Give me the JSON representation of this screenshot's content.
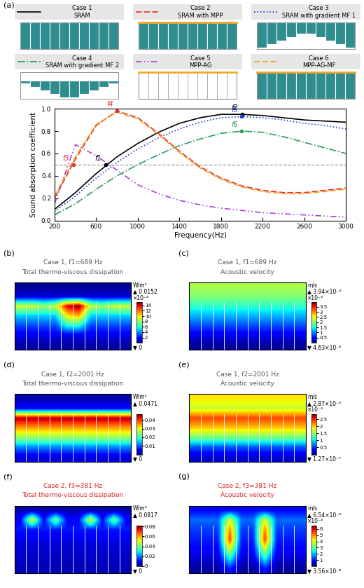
{
  "chart_data": [
    {
      "panel": "(a)",
      "type": "line",
      "xlabel": "Frequency(Hz)",
      "ylabel": "Sound absorption coefficient",
      "x": [
        200,
        400,
        600,
        800,
        1000,
        1200,
        1400,
        1600,
        1800,
        2000,
        2200,
        2400,
        2600,
        2800,
        3000
      ],
      "series": [
        {
          "name": "Case 1",
          "description": "SRAM",
          "color": "#000000",
          "line_style": "solid",
          "values": [
            0.1,
            0.25,
            0.42,
            0.57,
            0.69,
            0.79,
            0.87,
            0.92,
            0.95,
            0.95,
            0.94,
            0.92,
            0.9,
            0.89,
            0.88
          ]
        },
        {
          "name": "Case 2",
          "description": "SRAM with MPP",
          "color": "#e8302a",
          "line_style": "dashed",
          "values": [
            0.2,
            0.55,
            0.85,
            0.98,
            0.92,
            0.78,
            0.62,
            0.48,
            0.38,
            0.31,
            0.27,
            0.25,
            0.25,
            0.27,
            0.29
          ]
        },
        {
          "name": "Case 3",
          "description": "SRAM with gradient MF 1",
          "color": "#1f3fd0",
          "line_style": "dotted",
          "values": [
            0.08,
            0.22,
            0.38,
            0.52,
            0.64,
            0.74,
            0.82,
            0.88,
            0.92,
            0.93,
            0.92,
            0.9,
            0.87,
            0.85,
            0.82
          ]
        },
        {
          "name": "Case 4",
          "description": "SRAM with gradient MF 2",
          "color": "#2a9d5a",
          "line_style": "dashdot",
          "values": [
            0.05,
            0.15,
            0.28,
            0.4,
            0.5,
            0.59,
            0.67,
            0.73,
            0.78,
            0.8,
            0.79,
            0.75,
            0.7,
            0.65,
            0.6
          ]
        },
        {
          "name": "Case 5",
          "description": "MPP-AG",
          "color": "#b040d0",
          "line_style": "dashdotdot",
          "values": [
            0.15,
            0.68,
            0.58,
            0.45,
            0.32,
            0.24,
            0.18,
            0.14,
            0.11,
            0.09,
            0.07,
            0.06,
            0.05,
            0.04,
            0.03
          ]
        },
        {
          "name": "Case 6",
          "description": "MPP-AG-MF",
          "color": "#f0a020",
          "line_style": "dashed",
          "values": [
            0.22,
            0.57,
            0.86,
            0.97,
            0.91,
            0.77,
            0.61,
            0.47,
            0.37,
            0.3,
            0.26,
            0.24,
            0.24,
            0.26,
            0.28
          ]
        }
      ],
      "xlim": [
        200,
        3000
      ],
      "xticks": [
        200,
        600,
        1000,
        1400,
        1800,
        2200,
        2600,
        3000
      ],
      "ylim": [
        0.0,
        1.0
      ],
      "yticks": [
        0.0,
        0.2,
        0.4,
        0.6,
        0.8,
        1.0
      ],
      "reference_y": 0.5,
      "annotations": [
        {
          "text": "f1",
          "x": 689,
          "y": 0.5,
          "color": "#000000"
        },
        {
          "text": "f2",
          "x": 2001,
          "y": 0.95,
          "color": "#000000"
        },
        {
          "text": "f3",
          "x": 381,
          "y": 0.5,
          "color": "#e8302a"
        },
        {
          "text": "f4",
          "x": 800,
          "y": 0.98,
          "color": "#e8302a"
        },
        {
          "text": "f5",
          "x": 2000,
          "y": 0.93,
          "color": "#1f3fd0"
        },
        {
          "text": "f6",
          "x": 2000,
          "y": 0.8,
          "color": "#2a9d5a"
        }
      ]
    },
    {
      "panel": "(b)",
      "type": "heatmap",
      "title": "Case 1, f1=689 Hz",
      "subtitle": "Total thermo-viscous dissipation",
      "unit": "W/m³",
      "max_label": "▲ 0.0152",
      "min_label": "▼ 0",
      "multiplier": "×10⁻³",
      "clim": [
        0,
        15.2
      ],
      "cticks": [
        2,
        4,
        6,
        8,
        10,
        12,
        14
      ],
      "tick_labels": false,
      "cells": [
        [
          0.3,
          0.3,
          0.3,
          0.3,
          0.3,
          0.3,
          0.3,
          0.3,
          0.3,
          0.3
        ],
        [
          1.2,
          1.2,
          1.2,
          1.2,
          1.2,
          1.2,
          1.2,
          1.2,
          1.2,
          1.2
        ],
        [
          9,
          9,
          8,
          9,
          14,
          15,
          9,
          8,
          9,
          9
        ],
        [
          5,
          5,
          5,
          5,
          10,
          11,
          5,
          5,
          5,
          5
        ],
        [
          3,
          3,
          3,
          3,
          6,
          6,
          3,
          3,
          3,
          3
        ],
        [
          1.5,
          1.5,
          1.5,
          1.5,
          1.5,
          1.5,
          1.5,
          1.5,
          1.5,
          1.5
        ],
        [
          0.5,
          0.5,
          0.5,
          0.5,
          0.5,
          0.5,
          0.5,
          0.5,
          0.5,
          0.5
        ]
      ]
    },
    {
      "panel": "(c)",
      "type": "heatmap",
      "title": "Case 1, f1=689 Hz",
      "subtitle": "Acoustic velocity",
      "unit": "m/s",
      "max_label": "▲ 3.94×10⁻³",
      "min_label": "▼ 4.63×10⁻⁸",
      "multiplier": "×10⁻³",
      "clim": [
        4.63e-05,
        3.94
      ],
      "cticks": [
        0.5,
        1,
        1.5,
        2,
        2.5,
        3,
        3.5
      ],
      "tick_labels": false,
      "cells": [
        [
          2.2,
          2.2,
          2.2,
          2.2,
          2.2,
          2.2,
          2.2,
          2.2,
          2.2,
          2.2
        ],
        [
          2.0,
          2.0,
          2.0,
          2.0,
          2.0,
          2.0,
          2.0,
          2.0,
          2.0,
          2.0
        ],
        [
          1.6,
          1.6,
          1.6,
          1.6,
          1.6,
          1.6,
          1.6,
          1.6,
          1.6,
          1.6
        ],
        [
          1.2,
          1.2,
          1.2,
          1.2,
          1.2,
          1.2,
          1.2,
          1.2,
          1.2,
          1.2
        ],
        [
          0.8,
          0.8,
          0.8,
          0.8,
          0.8,
          0.8,
          0.8,
          0.8,
          0.8,
          0.8
        ],
        [
          0.4,
          0.4,
          0.4,
          0.4,
          0.4,
          0.4,
          0.4,
          0.4,
          0.4,
          0.4
        ],
        [
          0.1,
          0.1,
          0.1,
          0.1,
          0.1,
          0.1,
          0.1,
          0.1,
          0.1,
          0.1
        ]
      ]
    },
    {
      "panel": "(d)",
      "type": "heatmap",
      "title": "Case 1, f2=2001 Hz",
      "subtitle": "Total thermo-viscous dissipation",
      "unit": "W/m³",
      "max_label": "▲ 0.0471",
      "min_label": "▼ 0",
      "clim": [
        0,
        0.0471
      ],
      "cticks": [
        0.01,
        0.02,
        0.03,
        0.04
      ],
      "tick_labels": false,
      "cells": [
        [
          0.002,
          0.002,
          0.002,
          0.002,
          0.002,
          0.002,
          0.002,
          0.002,
          0.002,
          0.002
        ],
        [
          0.006,
          0.006,
          0.006,
          0.006,
          0.006,
          0.006,
          0.006,
          0.006,
          0.006,
          0.006
        ],
        [
          0.045,
          0.045,
          0.045,
          0.045,
          0.045,
          0.045,
          0.045,
          0.045,
          0.045,
          0.045
        ],
        [
          0.035,
          0.035,
          0.035,
          0.035,
          0.035,
          0.035,
          0.035,
          0.035,
          0.035,
          0.035
        ],
        [
          0.025,
          0.025,
          0.025,
          0.025,
          0.025,
          0.025,
          0.025,
          0.025,
          0.025,
          0.025
        ],
        [
          0.012,
          0.012,
          0.012,
          0.012,
          0.012,
          0.012,
          0.012,
          0.012,
          0.012,
          0.012
        ],
        [
          0.004,
          0.004,
          0.004,
          0.004,
          0.004,
          0.004,
          0.004,
          0.004,
          0.004,
          0.004
        ]
      ]
    },
    {
      "panel": "(e)",
      "type": "heatmap",
      "title": "Case 1, f2=2001 Hz",
      "subtitle": "Acoustic velocity",
      "unit": "m/s",
      "max_label": "▲ 2.87×10⁻³",
      "min_label": "▼ 1.27×10⁻⁷",
      "multiplier": "×10⁻³",
      "clim": [
        0.000127,
        2.87
      ],
      "cticks": [
        0.5,
        1,
        1.5,
        2,
        2.5
      ],
      "tick_labels": false,
      "cells": [
        [
          1.9,
          1.9,
          1.9,
          1.9,
          1.9,
          1.9,
          1.9,
          1.9,
          1.9,
          1.9
        ],
        [
          1.7,
          1.7,
          1.7,
          1.7,
          1.7,
          1.7,
          1.7,
          1.7,
          1.7,
          1.7
        ],
        [
          2.4,
          2.4,
          2.4,
          2.4,
          2.4,
          2.4,
          2.4,
          2.4,
          2.4,
          2.4
        ],
        [
          2.0,
          2.0,
          2.0,
          2.0,
          2.0,
          2.0,
          2.0,
          2.0,
          2.0,
          2.0
        ],
        [
          1.4,
          1.4,
          1.4,
          1.4,
          1.4,
          1.4,
          1.4,
          1.4,
          1.4,
          1.4
        ],
        [
          0.6,
          0.6,
          0.6,
          0.6,
          0.6,
          0.6,
          0.6,
          0.6,
          0.6,
          0.6
        ],
        [
          0.2,
          0.2,
          0.2,
          0.2,
          0.2,
          0.2,
          0.2,
          0.2,
          0.2,
          0.2
        ]
      ]
    },
    {
      "panel": "(f)",
      "type": "heatmap",
      "title": "Case 2, f3=381 Hz",
      "subtitle": "Total thermo-viscous dissipation",
      "color": "#e02020",
      "unit": "W/m³",
      "max_label": "▲ 0.0817",
      "min_label": "▼ 0",
      "clim": [
        0,
        0.0817
      ],
      "cticks": [
        0,
        0.02,
        0.04,
        0.06,
        0.08
      ],
      "tick_labels": false,
      "cells": [
        [
          0.003,
          0.003,
          0.003,
          0.003,
          0.003,
          0.003,
          0.003,
          0.003,
          0.003,
          0.003
        ],
        [
          0.01,
          0.05,
          0.01,
          0.04,
          0.01,
          0.01,
          0.05,
          0.01,
          0.04,
          0.01
        ],
        [
          0.012,
          0.012,
          0.012,
          0.012,
          0.012,
          0.012,
          0.012,
          0.012,
          0.012,
          0.012
        ],
        [
          0.008,
          0.008,
          0.008,
          0.008,
          0.008,
          0.008,
          0.008,
          0.008,
          0.008,
          0.008
        ],
        [
          0.006,
          0.006,
          0.006,
          0.006,
          0.006,
          0.006,
          0.006,
          0.006,
          0.006,
          0.006
        ],
        [
          0.005,
          0.005,
          0.005,
          0.005,
          0.005,
          0.005,
          0.005,
          0.005,
          0.005,
          0.005
        ],
        [
          0.004,
          0.004,
          0.004,
          0.004,
          0.004,
          0.004,
          0.004,
          0.004,
          0.004,
          0.004
        ]
      ]
    },
    {
      "panel": "(g)",
      "type": "heatmap",
      "title": "Case 2, f3=381 Hz",
      "subtitle": "Acoustic velocity",
      "color": "#e02020",
      "unit": "m/s",
      "max_label": "▲ 6.54×10⁻³",
      "min_label": "▼ 3.56×10⁻⁸",
      "multiplier": "×10⁻³",
      "clim": [
        3.56e-05,
        6.54
      ],
      "cticks": [
        1,
        2,
        3,
        4,
        5,
        6
      ],
      "tick_labels": false,
      "cells": [
        [
          0.8,
          0.8,
          0.8,
          0.8,
          0.8,
          0.8,
          0.8,
          0.8,
          0.8,
          0.8
        ],
        [
          1.5,
          1.5,
          1.5,
          4,
          1.5,
          1.5,
          4,
          1.5,
          1.5,
          1.5
        ],
        [
          1.2,
          1.2,
          1.2,
          5,
          1.2,
          1.2,
          5,
          1.2,
          1.2,
          1.2
        ],
        [
          1.0,
          1.0,
          1.0,
          5.5,
          1.0,
          1.0,
          5.5,
          1.0,
          1.0,
          1.0
        ],
        [
          0.8,
          0.8,
          0.8,
          4,
          0.8,
          0.8,
          4,
          0.8,
          0.8,
          0.8
        ],
        [
          0.5,
          0.5,
          0.5,
          2.5,
          0.5,
          0.5,
          2.5,
          0.5,
          0.5,
          0.5
        ],
        [
          0.2,
          0.2,
          0.2,
          1,
          0.2,
          0.2,
          1,
          0.2,
          0.2,
          0.2
        ]
      ]
    }
  ]
}
